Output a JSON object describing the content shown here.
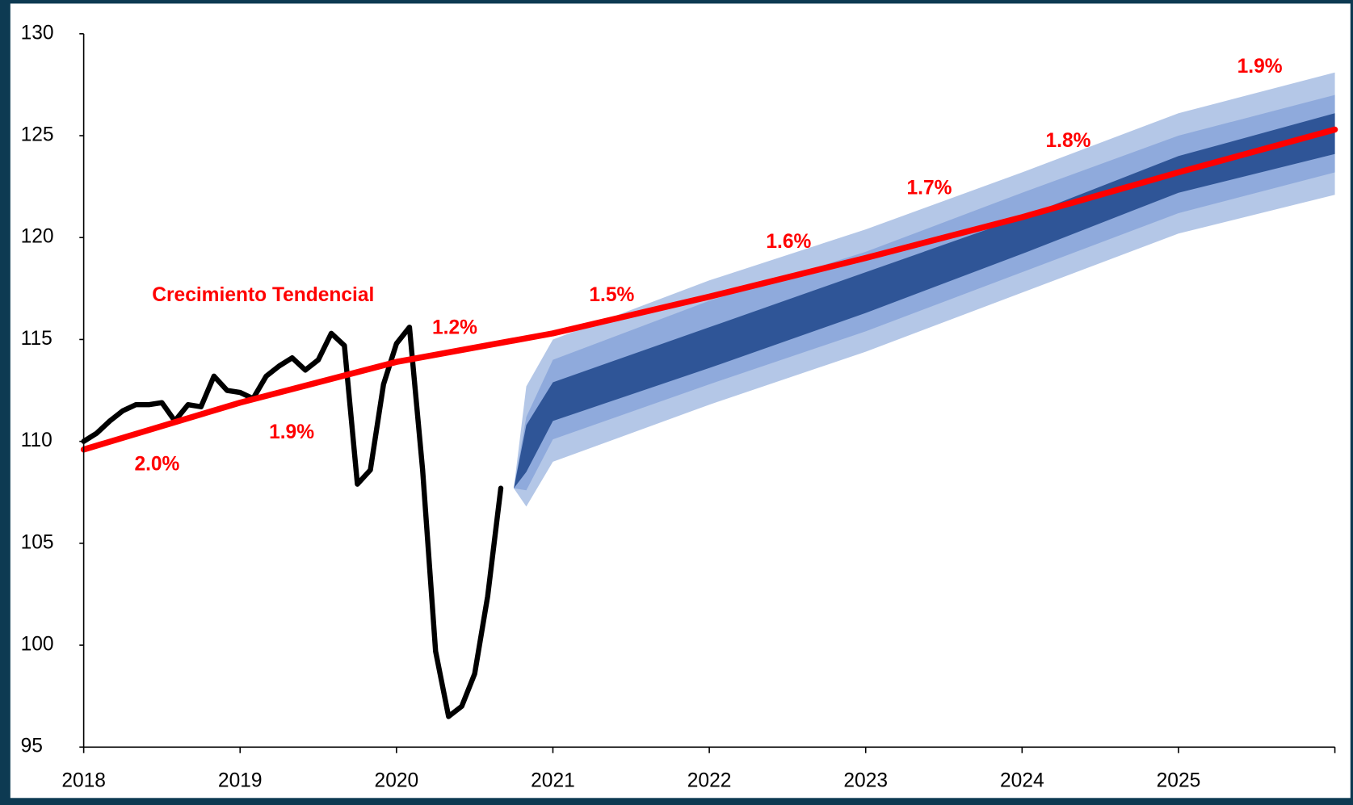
{
  "chart_data": {
    "type": "fan",
    "xlim": [
      2018,
      2026
    ],
    "xticks": [
      2018,
      2019,
      2020,
      2021,
      2022,
      2023,
      2024,
      2025
    ],
    "ylim": [
      95,
      130
    ],
    "yticks": [
      95,
      100,
      105,
      110,
      115,
      120,
      125,
      130
    ],
    "band_x": [
      2020.75,
      2020.83,
      2021,
      2022,
      2023,
      2024,
      2025,
      2026
    ],
    "bands": [
      {
        "color": "#b4c7e7",
        "upper": [
          107.7,
          112.7,
          115.0,
          117.9,
          120.4,
          123.2,
          126.1,
          128.1
        ],
        "lower": [
          107.7,
          106.8,
          109.0,
          111.8,
          114.4,
          117.3,
          120.2,
          122.1
        ]
      },
      {
        "color": "#8faadc",
        "upper": [
          107.7,
          111.2,
          114.0,
          116.9,
          119.3,
          122.2,
          125.0,
          127.0
        ],
        "lower": [
          107.7,
          107.6,
          110.1,
          112.8,
          115.4,
          118.3,
          121.2,
          123.2
        ]
      },
      {
        "color": "#2f5597",
        "upper": [
          107.7,
          110.8,
          112.9,
          115.6,
          118.3,
          121.0,
          124.0,
          126.1
        ],
        "lower": [
          107.7,
          108.5,
          111.0,
          113.6,
          116.3,
          119.2,
          122.2,
          124.1
        ]
      }
    ],
    "series": [
      {
        "color": "#000000",
        "x": [
          2018.0,
          2018.083,
          2018.167,
          2018.25,
          2018.333,
          2018.417,
          2018.5,
          2018.583,
          2018.667,
          2018.75,
          2018.833,
          2018.917,
          2019.0,
          2019.083,
          2019.167,
          2019.25,
          2019.333,
          2019.417,
          2019.5,
          2019.583,
          2019.667,
          2019.75,
          2019.833,
          2019.917,
          2020.0,
          2020.083,
          2020.167,
          2020.25,
          2020.333,
          2020.417,
          2020.5,
          2020.583,
          2020.667
        ],
        "values": [
          110.0,
          110.4,
          111.0,
          111.5,
          111.8,
          111.8,
          111.9,
          111.0,
          111.8,
          111.7,
          113.2,
          112.5,
          112.4,
          112.1,
          113.2,
          113.7,
          114.1,
          113.5,
          114.0,
          115.3,
          114.7,
          107.9,
          108.6,
          112.8,
          114.8,
          115.6,
          108.6,
          99.7,
          96.5,
          97.0,
          98.6,
          102.4,
          107.7
        ]
      },
      {
        "color": "#ff0000",
        "x": [
          2018,
          2019,
          2020,
          2021,
          2022,
          2023,
          2024,
          2025,
          2026
        ],
        "values": [
          109.6,
          111.9,
          113.9,
          115.3,
          117.1,
          119.0,
          121.0,
          123.2,
          125.3
        ]
      }
    ],
    "annotations": [
      "Crecimiento Tendencial",
      "1.2%",
      "2.0%",
      "1.9%",
      "1.5%",
      "1.6%",
      "1.7%",
      "1.8%",
      "1.9%"
    ]
  }
}
